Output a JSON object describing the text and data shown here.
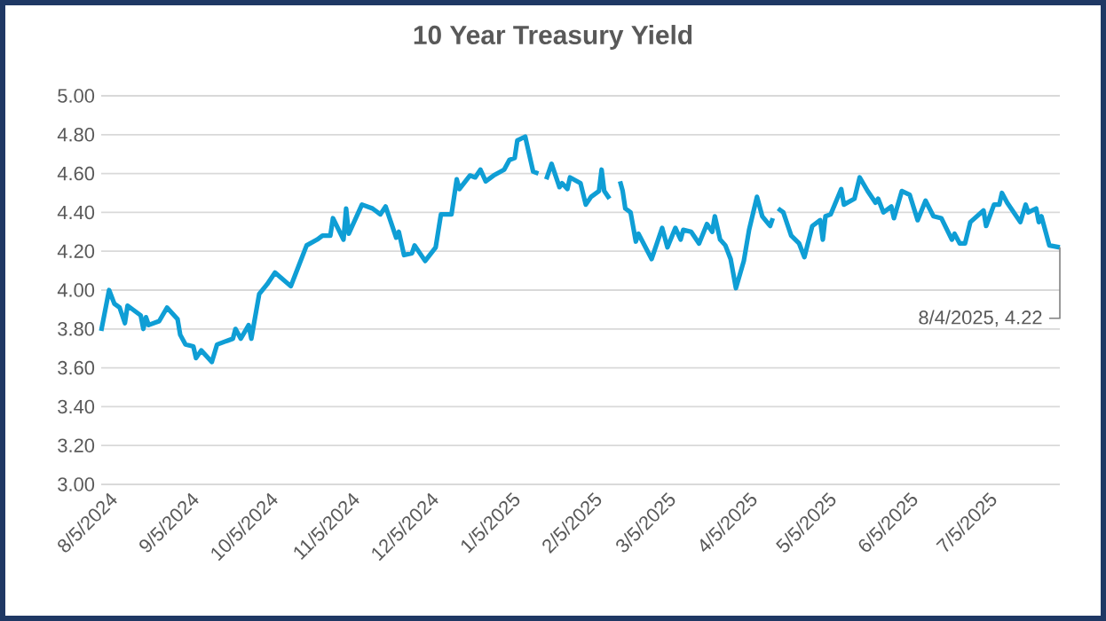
{
  "chart_data": {
    "type": "line",
    "title": "10 Year Treasury Yield",
    "x": [
      "2024-08-05",
      "2024-08-08",
      "2024-08-10",
      "2024-08-12",
      "2024-08-14",
      "2024-08-15",
      "2024-08-20",
      "2024-08-21",
      "2024-08-22",
      "2024-08-23",
      "2024-08-27",
      "2024-08-30",
      "2024-09-03",
      "2024-09-04",
      "2024-09-06",
      "2024-09-09",
      "2024-09-10",
      "2024-09-12",
      "2024-09-16",
      "2024-09-18",
      "2024-09-22",
      "2024-09-24",
      "2024-09-25",
      "2024-09-27",
      "2024-09-30",
      "2024-10-01",
      "2024-10-04",
      "2024-10-07",
      "2024-10-10",
      "2024-10-16",
      "2024-10-18",
      "2024-10-22",
      "2024-10-26",
      "2024-10-28",
      "2024-10-31",
      "2024-11-01",
      "2024-11-05",
      "2024-11-06",
      "2024-11-07",
      "2024-11-12",
      "2024-11-16",
      "2024-11-19",
      "2024-11-21",
      "2024-11-25",
      "2024-11-26",
      "2024-11-28",
      "2024-12-01",
      "2024-12-02",
      "2024-12-06",
      "2024-12-10",
      "2024-12-12",
      "2024-12-16",
      "2024-12-18",
      "2024-12-19",
      "2024-12-23",
      "2024-12-25",
      "2024-12-27",
      "2024-12-29",
      "2025-01-01",
      "2025-01-05",
      "2025-01-07",
      "2025-01-09",
      "2025-01-10",
      "2025-01-13",
      "2025-01-16",
      "2025-01-18",
      "2025-01-20",
      "2025-01-21",
      "2025-01-23",
      "2025-01-26",
      "2025-01-27",
      "2025-01-29",
      "2025-01-30",
      "2025-02-03",
      "2025-02-05",
      "2025-02-07",
      "2025-02-10",
      "2025-02-11",
      "2025-02-12",
      "2025-02-14",
      "2025-02-17",
      "2025-02-18",
      "2025-02-19",
      "2025-02-20",
      "2025-02-22",
      "2025-02-24",
      "2025-02-25",
      "2025-03-02",
      "2025-03-06",
      "2025-03-08",
      "2025-03-11",
      "2025-03-13",
      "2025-03-14",
      "2025-03-17",
      "2025-03-20",
      "2025-03-23",
      "2025-03-25",
      "2025-03-26",
      "2025-03-28",
      "2025-03-30",
      "2025-04-01",
      "2025-04-03",
      "2025-04-06",
      "2025-04-08",
      "2025-04-11",
      "2025-04-13",
      "2025-04-16",
      "2025-04-17",
      "2025-04-18",
      "2025-04-19",
      "2025-04-21",
      "2025-04-24",
      "2025-04-27",
      "2025-04-29",
      "2025-05-02",
      "2025-05-05",
      "2025-05-06",
      "2025-05-07",
      "2025-05-09",
      "2025-05-13",
      "2025-05-14",
      "2025-05-18",
      "2025-05-20",
      "2025-05-23",
      "2025-05-26",
      "2025-05-27",
      "2025-05-29",
      "2025-06-01",
      "2025-06-02",
      "2025-06-05",
      "2025-06-08",
      "2025-06-11",
      "2025-06-14",
      "2025-06-17",
      "2025-06-20",
      "2025-06-24",
      "2025-06-25",
      "2025-06-27",
      "2025-06-29",
      "2025-07-01",
      "2025-07-06",
      "2025-07-07",
      "2025-07-10",
      "2025-07-12",
      "2025-07-13",
      "2025-07-15",
      "2025-07-20",
      "2025-07-22",
      "2025-07-23",
      "2025-07-26",
      "2025-07-27",
      "2025-07-28",
      "2025-07-31",
      "2025-08-04"
    ],
    "series": [
      {
        "color": "#0f9ed5",
        "values": [
          3.79,
          4.0,
          3.93,
          3.91,
          3.83,
          3.92,
          3.87,
          3.8,
          3.86,
          3.82,
          3.84,
          3.91,
          3.85,
          3.77,
          3.72,
          3.71,
          3.65,
          3.69,
          3.63,
          3.72,
          3.74,
          3.75,
          3.8,
          3.75,
          3.82,
          3.75,
          3.98,
          4.03,
          4.09,
          4.02,
          4.09,
          4.23,
          4.26,
          4.28,
          4.28,
          4.37,
          4.26,
          4.42,
          4.29,
          4.44,
          4.42,
          4.39,
          4.43,
          4.27,
          4.3,
          4.18,
          4.19,
          4.23,
          4.15,
          4.22,
          4.39,
          4.39,
          4.57,
          4.52,
          4.59,
          4.58,
          4.62,
          4.56,
          4.59,
          4.62,
          4.67,
          4.68,
          4.77,
          4.79,
          4.61,
          4.6,
          null,
          4.57,
          4.65,
          4.53,
          4.55,
          4.52,
          4.58,
          4.55,
          4.44,
          4.48,
          4.51,
          4.62,
          4.51,
          4.47,
          null,
          4.56,
          4.51,
          4.42,
          4.4,
          4.25,
          4.29,
          4.16,
          4.32,
          4.22,
          4.32,
          4.26,
          4.31,
          4.3,
          4.24,
          4.34,
          4.3,
          4.38,
          4.26,
          4.23,
          4.16,
          4.01,
          4.15,
          4.31,
          4.48,
          4.38,
          4.33,
          4.37,
          null,
          4.42,
          4.4,
          4.28,
          4.24,
          4.17,
          4.33,
          4.36,
          4.26,
          4.38,
          4.39,
          4.52,
          4.44,
          4.47,
          4.58,
          4.51,
          4.45,
          4.47,
          4.4,
          4.43,
          4.37,
          4.51,
          4.49,
          4.36,
          4.46,
          4.38,
          4.37,
          4.26,
          4.29,
          4.24,
          4.24,
          4.35,
          4.41,
          4.33,
          4.44,
          4.44,
          4.5,
          4.45,
          4.35,
          4.44,
          4.4,
          4.42,
          4.35,
          4.38,
          4.23,
          4.22
        ]
      }
    ],
    "xlim": [
      "2024-08-05",
      "2025-08-04"
    ],
    "xticks": [
      {
        "value": "2024-08-05",
        "label": "8/5/2024"
      },
      {
        "value": "2024-09-05",
        "label": "9/5/2024"
      },
      {
        "value": "2024-10-05",
        "label": "10/5/2024"
      },
      {
        "value": "2024-11-05",
        "label": "11/5/2024"
      },
      {
        "value": "2024-12-05",
        "label": "12/5/2024"
      },
      {
        "value": "2025-01-05",
        "label": "1/5/2025"
      },
      {
        "value": "2025-02-05",
        "label": "2/5/2025"
      },
      {
        "value": "2025-03-05",
        "label": "3/5/2025"
      },
      {
        "value": "2025-04-05",
        "label": "4/5/2025"
      },
      {
        "value": "2025-05-05",
        "label": "5/5/2025"
      },
      {
        "value": "2025-06-05",
        "label": "6/5/2025"
      },
      {
        "value": "2025-07-05",
        "label": "7/5/2025"
      }
    ],
    "ylim": [
      3.0,
      5.0
    ],
    "yticks": [
      {
        "value": 3.0,
        "label": "3.00"
      },
      {
        "value": 3.2,
        "label": "3.20"
      },
      {
        "value": 3.4,
        "label": "3.40"
      },
      {
        "value": 3.6,
        "label": "3.60"
      },
      {
        "value": 3.8,
        "label": "3.80"
      },
      {
        "value": 4.0,
        "label": "4.00"
      },
      {
        "value": 4.2,
        "label": "4.20"
      },
      {
        "value": 4.4,
        "label": "4.40"
      },
      {
        "value": 4.6,
        "label": "4.60"
      },
      {
        "value": 4.8,
        "label": "4.80"
      },
      {
        "value": 5.0,
        "label": "5.00"
      }
    ],
    "grid": "y",
    "annotations": [
      {
        "text": "8/4/2025,  4.22",
        "x": "2025-08-04",
        "y": 4.22
      }
    ]
  }
}
